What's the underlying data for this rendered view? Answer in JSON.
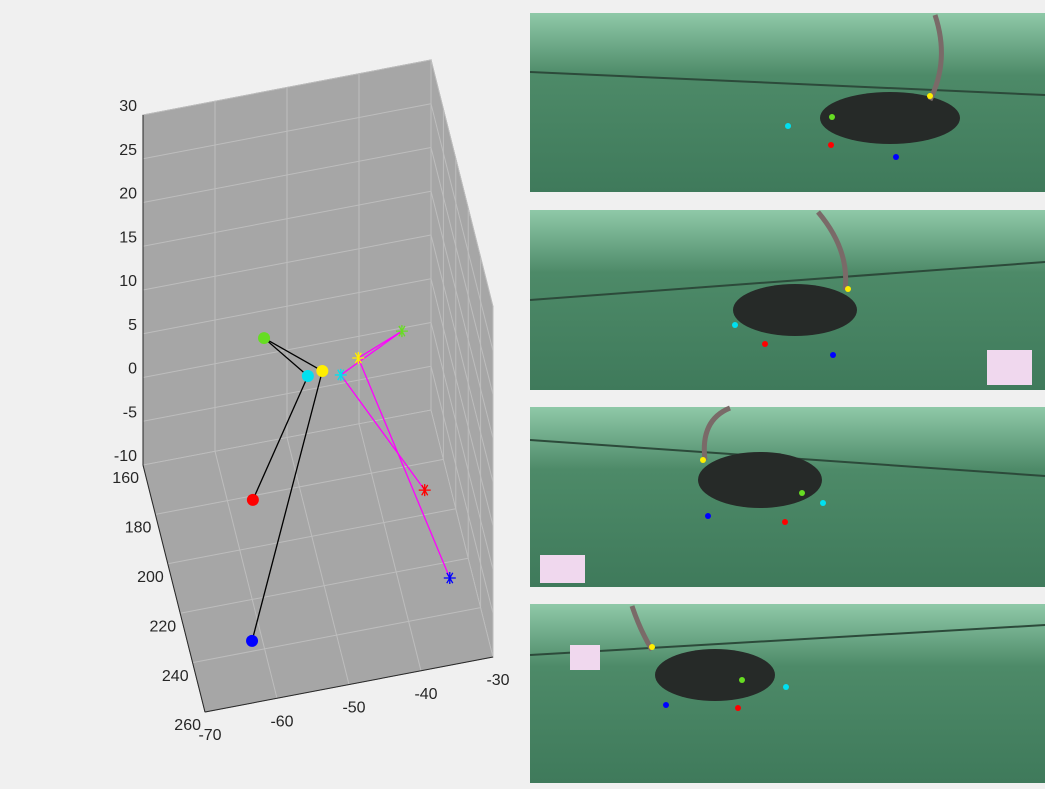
{
  "chart_data": {
    "type": "scatter3d",
    "xlim": [
      -70,
      -30
    ],
    "xticks": [
      -70,
      -60,
      -50,
      -40,
      -30
    ],
    "ylim": [
      160,
      260
    ],
    "yticks": [
      160,
      180,
      200,
      220,
      240,
      260
    ],
    "zlim": [
      -10,
      30
    ],
    "zticks": [
      -10,
      -5,
      0,
      5,
      10,
      15,
      20,
      25,
      30
    ],
    "grid": true,
    "background": "#a6a6a6",
    "series": [
      {
        "marker": "o",
        "line_color": "#000000",
        "x": [
          -54.1,
          -48.1,
          -46.6,
          -56.6,
          -61.4
        ],
        "y": [
          170.6,
          171.6,
          177.5,
          181.6,
          236.0
        ],
        "z": [
          5,
          0,
          2,
          -10,
          -10
        ],
        "colors": [
          "#66dd22",
          "#00e0f0",
          "#ffee00",
          "#ff0000",
          "#0000ff"
        ],
        "edges": [
          [
            0,
            1
          ],
          [
            0,
            2
          ],
          [
            1,
            3
          ],
          [
            2,
            4
          ]
        ]
      },
      {
        "marker": "*",
        "line_color": "#ff00ff",
        "x": [
          -35.6,
          -43.7,
          -41.4,
          -33.5,
          -33.1
        ],
        "y": [
          178.1,
          173.6,
          175.1,
          190.5,
          226.3
        ],
        "z": [
          5,
          0,
          2,
          -10,
          -10
        ],
        "colors": [
          "#66dd22",
          "#00e0f0",
          "#ffee00",
          "#ff0000",
          "#0000ff"
        ],
        "edges": [
          [
            0,
            1
          ],
          [
            0,
            2
          ],
          [
            1,
            3
          ],
          [
            2,
            4
          ]
        ]
      }
    ]
  }
}
